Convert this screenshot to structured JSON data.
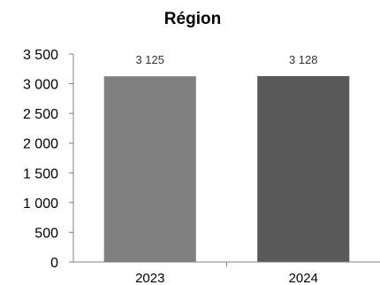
{
  "chart_data": {
    "type": "bar",
    "title": "Région",
    "xlabel": "",
    "ylabel": "",
    "categories": [
      "2023",
      "2024"
    ],
    "values": [
      3125,
      3128
    ],
    "data_labels": [
      "3 125",
      "3 128"
    ],
    "ylim": [
      0,
      3500
    ],
    "yticks": [
      0,
      500,
      1000,
      1500,
      2000,
      2500,
      3000,
      3500
    ],
    "ytick_labels": [
      "0",
      "500",
      "1 000",
      "1 500",
      "2 000",
      "2 500",
      "3 000",
      "3 500"
    ],
    "grid": false,
    "legend": "none",
    "bar_colors": [
      "#808080",
      "#595959"
    ],
    "axis_color": "#808080"
  }
}
